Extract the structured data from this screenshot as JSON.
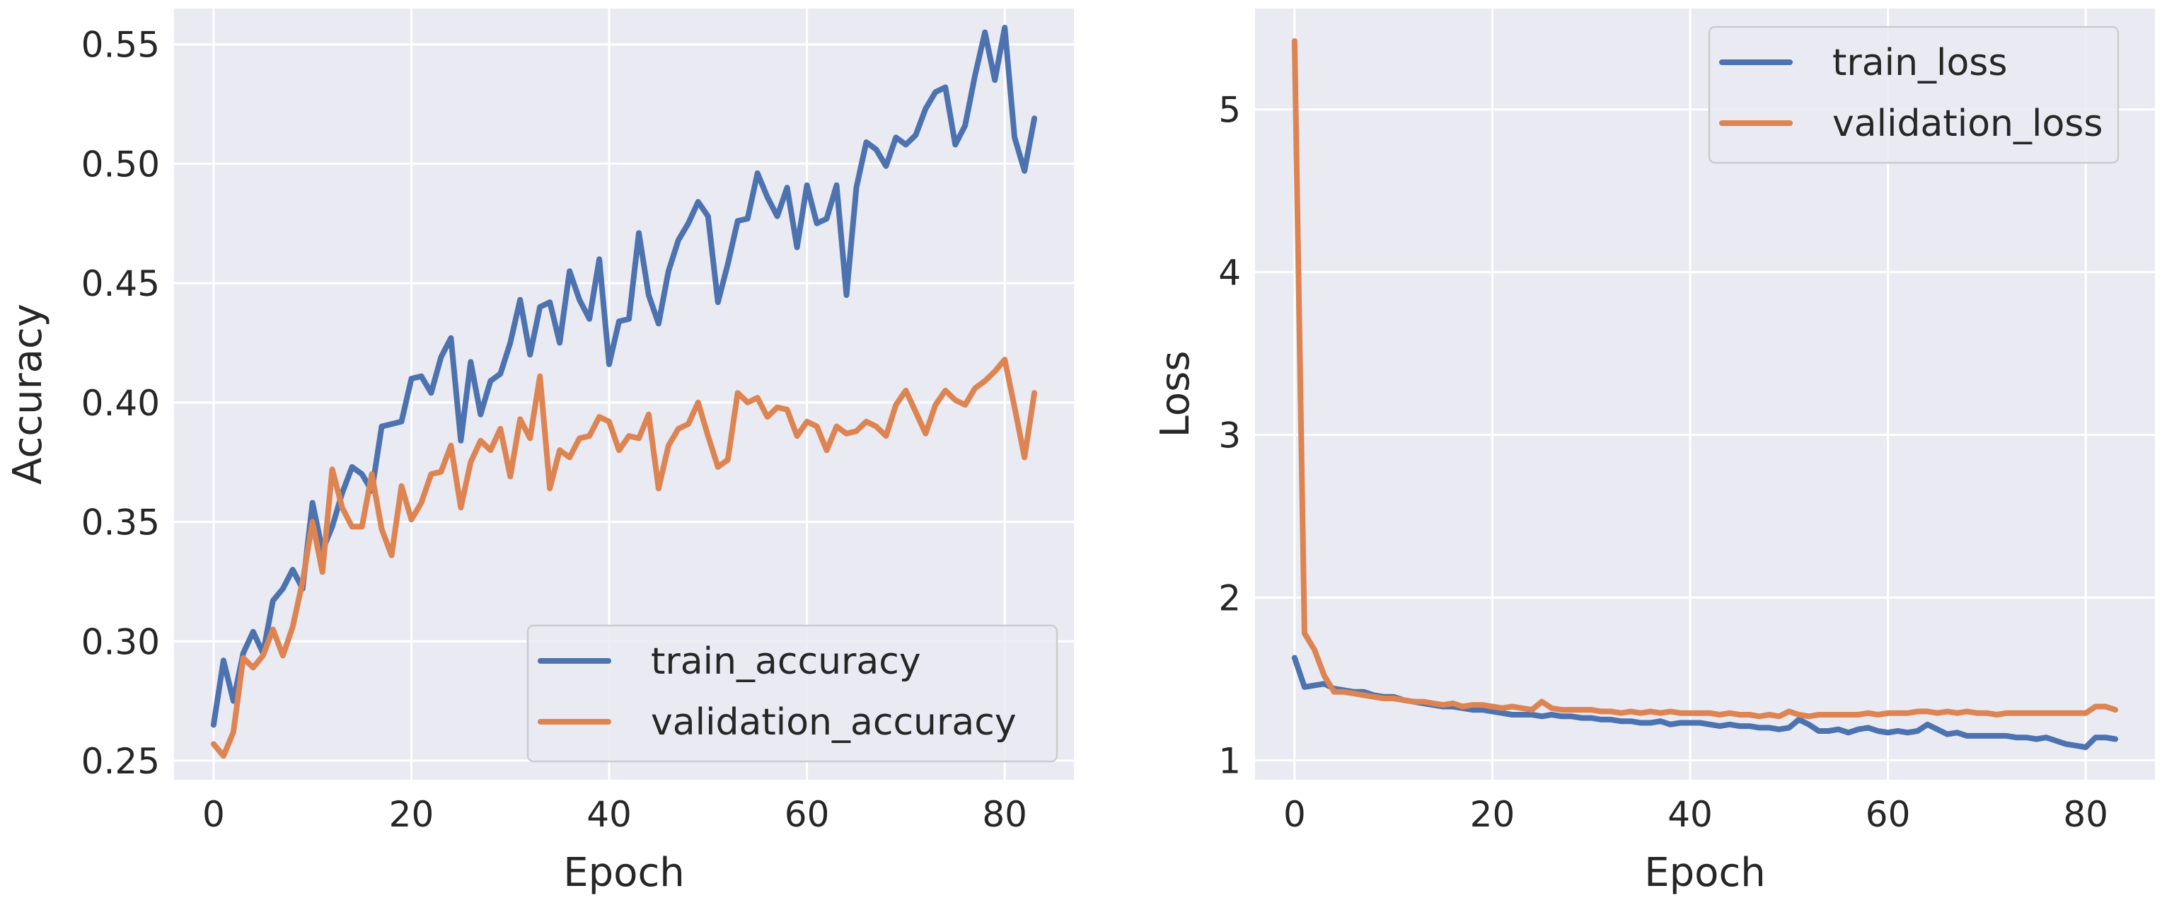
{
  "colors": {
    "train": "#4c72b0",
    "validation": "#dd8452",
    "background": "#eaeaf2",
    "grid": "#ffffff"
  },
  "chart_data": [
    {
      "type": "line",
      "id": "accuracy",
      "title": "",
      "xlabel": "Epoch",
      "ylabel": "Accuracy",
      "xlim": [
        -4,
        87
      ],
      "ylim": [
        0.242,
        0.565
      ],
      "xticks": [
        0,
        20,
        40,
        60,
        80
      ],
      "xtick_labels": [
        "0",
        "20",
        "40",
        "60",
        "80"
      ],
      "yticks": [
        0.25,
        0.3,
        0.35,
        0.4,
        0.45,
        0.5,
        0.55
      ],
      "ytick_labels": [
        "0.25",
        "0.30",
        "0.35",
        "0.40",
        "0.45",
        "0.50",
        "0.55"
      ],
      "legend_position": "lower-right",
      "series": [
        {
          "name": "train_accuracy",
          "color": "#4c72b0",
          "values": [
            0.265,
            0.292,
            0.275,
            0.295,
            0.304,
            0.295,
            0.317,
            0.322,
            0.33,
            0.322,
            0.358,
            0.338,
            0.348,
            0.362,
            0.373,
            0.37,
            0.363,
            0.39,
            0.391,
            0.392,
            0.41,
            0.411,
            0.404,
            0.419,
            0.427,
            0.384,
            0.417,
            0.395,
            0.409,
            0.412,
            0.425,
            0.443,
            0.42,
            0.44,
            0.442,
            0.425,
            0.455,
            0.443,
            0.435,
            0.46,
            0.416,
            0.434,
            0.435,
            0.471,
            0.445,
            0.433,
            0.455,
            0.468,
            0.475,
            0.484,
            0.478,
            0.442,
            0.458,
            0.476,
            0.477,
            0.496,
            0.486,
            0.478,
            0.49,
            0.465,
            0.491,
            0.475,
            0.477,
            0.491,
            0.445,
            0.49,
            0.509,
            0.506,
            0.499,
            0.511,
            0.508,
            0.512,
            0.523,
            0.53,
            0.532,
            0.508,
            0.516,
            0.537,
            0.555,
            0.535,
            0.557,
            0.511,
            0.497,
            0.519
          ]
        },
        {
          "name": "validation_accuracy",
          "color": "#dd8452",
          "values": [
            0.257,
            0.252,
            0.262,
            0.293,
            0.289,
            0.294,
            0.305,
            0.294,
            0.306,
            0.325,
            0.35,
            0.329,
            0.372,
            0.356,
            0.348,
            0.348,
            0.37,
            0.347,
            0.336,
            0.365,
            0.351,
            0.358,
            0.37,
            0.371,
            0.382,
            0.356,
            0.375,
            0.384,
            0.38,
            0.389,
            0.369,
            0.393,
            0.385,
            0.411,
            0.364,
            0.38,
            0.377,
            0.385,
            0.386,
            0.394,
            0.392,
            0.38,
            0.386,
            0.385,
            0.395,
            0.364,
            0.382,
            0.389,
            0.391,
            0.4,
            0.386,
            0.373,
            0.376,
            0.404,
            0.4,
            0.402,
            0.394,
            0.398,
            0.397,
            0.386,
            0.392,
            0.39,
            0.38,
            0.39,
            0.387,
            0.388,
            0.392,
            0.39,
            0.386,
            0.399,
            0.405,
            0.396,
            0.387,
            0.399,
            0.405,
            0.401,
            0.399,
            0.406,
            0.409,
            0.413,
            0.418,
            0.398,
            0.377,
            0.404
          ]
        }
      ]
    },
    {
      "type": "line",
      "id": "loss",
      "title": "",
      "xlabel": "Epoch",
      "ylabel": "Loss",
      "xlim": [
        -4,
        87
      ],
      "ylim": [
        0.88,
        5.62
      ],
      "xticks": [
        0,
        20,
        40,
        60,
        80
      ],
      "xtick_labels": [
        "0",
        "20",
        "40",
        "60",
        "80"
      ],
      "yticks": [
        1,
        2,
        3,
        4,
        5
      ],
      "ytick_labels": [
        "1",
        "2",
        "3",
        "4",
        "5"
      ],
      "legend_position": "upper-right",
      "series": [
        {
          "name": "train_loss",
          "color": "#4c72b0",
          "values": [
            1.63,
            1.45,
            1.46,
            1.47,
            1.44,
            1.43,
            1.42,
            1.42,
            1.4,
            1.39,
            1.39,
            1.37,
            1.36,
            1.35,
            1.34,
            1.33,
            1.33,
            1.32,
            1.31,
            1.31,
            1.3,
            1.29,
            1.28,
            1.28,
            1.28,
            1.27,
            1.28,
            1.27,
            1.27,
            1.26,
            1.26,
            1.25,
            1.25,
            1.24,
            1.24,
            1.23,
            1.23,
            1.24,
            1.22,
            1.23,
            1.23,
            1.23,
            1.22,
            1.21,
            1.22,
            1.21,
            1.21,
            1.2,
            1.2,
            1.19,
            1.2,
            1.25,
            1.22,
            1.18,
            1.18,
            1.19,
            1.17,
            1.19,
            1.2,
            1.18,
            1.17,
            1.18,
            1.17,
            1.18,
            1.22,
            1.19,
            1.16,
            1.17,
            1.15,
            1.15,
            1.15,
            1.15,
            1.15,
            1.14,
            1.14,
            1.13,
            1.14,
            1.12,
            1.1,
            1.09,
            1.08,
            1.14,
            1.14,
            1.13
          ]
        },
        {
          "name": "validation_loss",
          "color": "#dd8452",
          "values": [
            5.42,
            1.78,
            1.68,
            1.52,
            1.42,
            1.42,
            1.41,
            1.4,
            1.39,
            1.38,
            1.38,
            1.37,
            1.36,
            1.36,
            1.35,
            1.34,
            1.35,
            1.33,
            1.34,
            1.34,
            1.33,
            1.32,
            1.33,
            1.32,
            1.31,
            1.36,
            1.32,
            1.31,
            1.31,
            1.31,
            1.31,
            1.3,
            1.3,
            1.29,
            1.3,
            1.29,
            1.3,
            1.29,
            1.3,
            1.29,
            1.29,
            1.29,
            1.29,
            1.28,
            1.29,
            1.28,
            1.28,
            1.27,
            1.28,
            1.27,
            1.3,
            1.28,
            1.27,
            1.28,
            1.28,
            1.28,
            1.28,
            1.28,
            1.29,
            1.28,
            1.29,
            1.29,
            1.29,
            1.3,
            1.3,
            1.29,
            1.3,
            1.29,
            1.3,
            1.29,
            1.29,
            1.28,
            1.29,
            1.29,
            1.29,
            1.29,
            1.29,
            1.29,
            1.29,
            1.29,
            1.29,
            1.33,
            1.33,
            1.31
          ]
        }
      ]
    }
  ]
}
